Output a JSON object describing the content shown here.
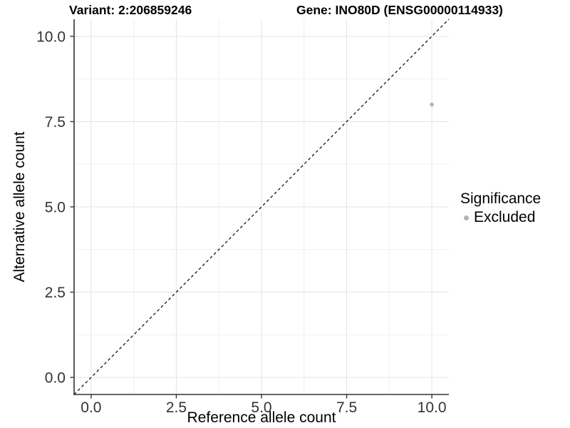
{
  "titles": {
    "variant": "Variant: 2:206859246",
    "gene": "Gene: INO80D (ENSG00000114933)"
  },
  "axes": {
    "x": {
      "label": "Reference allele count",
      "ticks": [
        "0.0",
        "2.5",
        "5.0",
        "7.5",
        "10.0"
      ]
    },
    "y": {
      "label": "Alternative allele count",
      "ticks": [
        "0.0",
        "2.5",
        "5.0",
        "7.5",
        "10.0"
      ]
    }
  },
  "legend": {
    "title": "Significance",
    "items": [
      {
        "label": "Excluded",
        "color": "#b3b3b3"
      }
    ]
  },
  "colors": {
    "point": "#b3b3b3",
    "grid_major": "#e4e4e4",
    "grid_minor": "#f0f0f0",
    "axis": "#333333",
    "reference_line": "#000000",
    "background": "#ffffff"
  },
  "chart_data": {
    "type": "scatter",
    "title": "",
    "xlabel": "Reference allele count",
    "ylabel": "Alternative allele count",
    "xlim": [
      -0.5,
      10.5
    ],
    "ylim": [
      -0.5,
      10.5
    ],
    "x_ticks": [
      0.0,
      2.5,
      5.0,
      7.5,
      10.0
    ],
    "y_ticks": [
      0.0,
      2.5,
      5.0,
      7.5,
      10.0
    ],
    "x_minor": [
      1.25,
      3.75,
      6.25,
      8.75
    ],
    "y_minor": [
      1.25,
      3.75,
      6.25,
      8.75
    ],
    "grid": true,
    "legend_position": "right",
    "series": [
      {
        "name": "Excluded",
        "color": "#b3b3b3",
        "points": [
          {
            "x": 10,
            "y": 8
          }
        ]
      }
    ],
    "reference_line": {
      "type": "identity y=x",
      "style": "dashed",
      "color": "#000000"
    }
  }
}
